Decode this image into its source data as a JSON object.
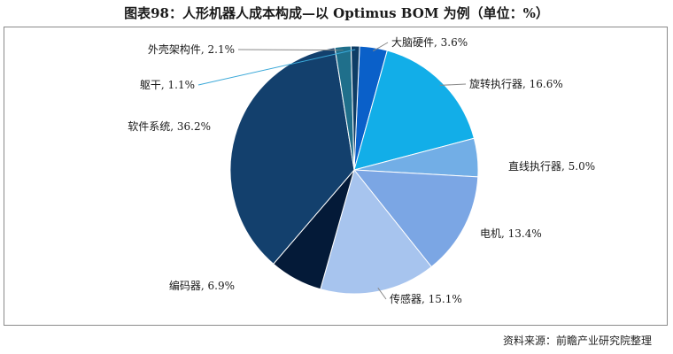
{
  "title": "图表98：人形机器人成本构成—以 Optimus BOM 为例（单位：%）",
  "source": "资料来源：前瞻产业研究院整理",
  "chart_data": {
    "type": "pie",
    "unit": "%",
    "slices": [
      {
        "label": "外壳架构件",
        "value": 2.1,
        "color": "#1f6f8b"
      },
      {
        "label": "躯干",
        "value": 1.1,
        "color": "#0e3d66"
      },
      {
        "label": "大脑硬件",
        "value": 3.6,
        "color": "#0a60c9"
      },
      {
        "label": "旋转执行器",
        "value": 16.6,
        "color": "#12aee8"
      },
      {
        "label": "直线执行器",
        "value": 5.0,
        "color": "#72aee6"
      },
      {
        "label": "电机",
        "value": 13.4,
        "color": "#7ba6e4"
      },
      {
        "label": "传感器",
        "value": 15.1,
        "color": "#a7c4ee"
      },
      {
        "label": "编码器",
        "value": 6.9,
        "color": "#041a38"
      },
      {
        "label": "软件系统",
        "value": 36.2,
        "color": "#13406d"
      }
    ],
    "label_texts": [
      "外壳架构件, 2.1%",
      "躯干, 1.1%",
      "大脑硬件, 3.6%",
      "旋转执行器, 16.6%",
      "直线执行器, 5.0%",
      "电机, 13.4%",
      "传感器, 15.1%",
      "编码器, 6.9%",
      "软件系统, 36.2%"
    ],
    "legend": "none"
  }
}
